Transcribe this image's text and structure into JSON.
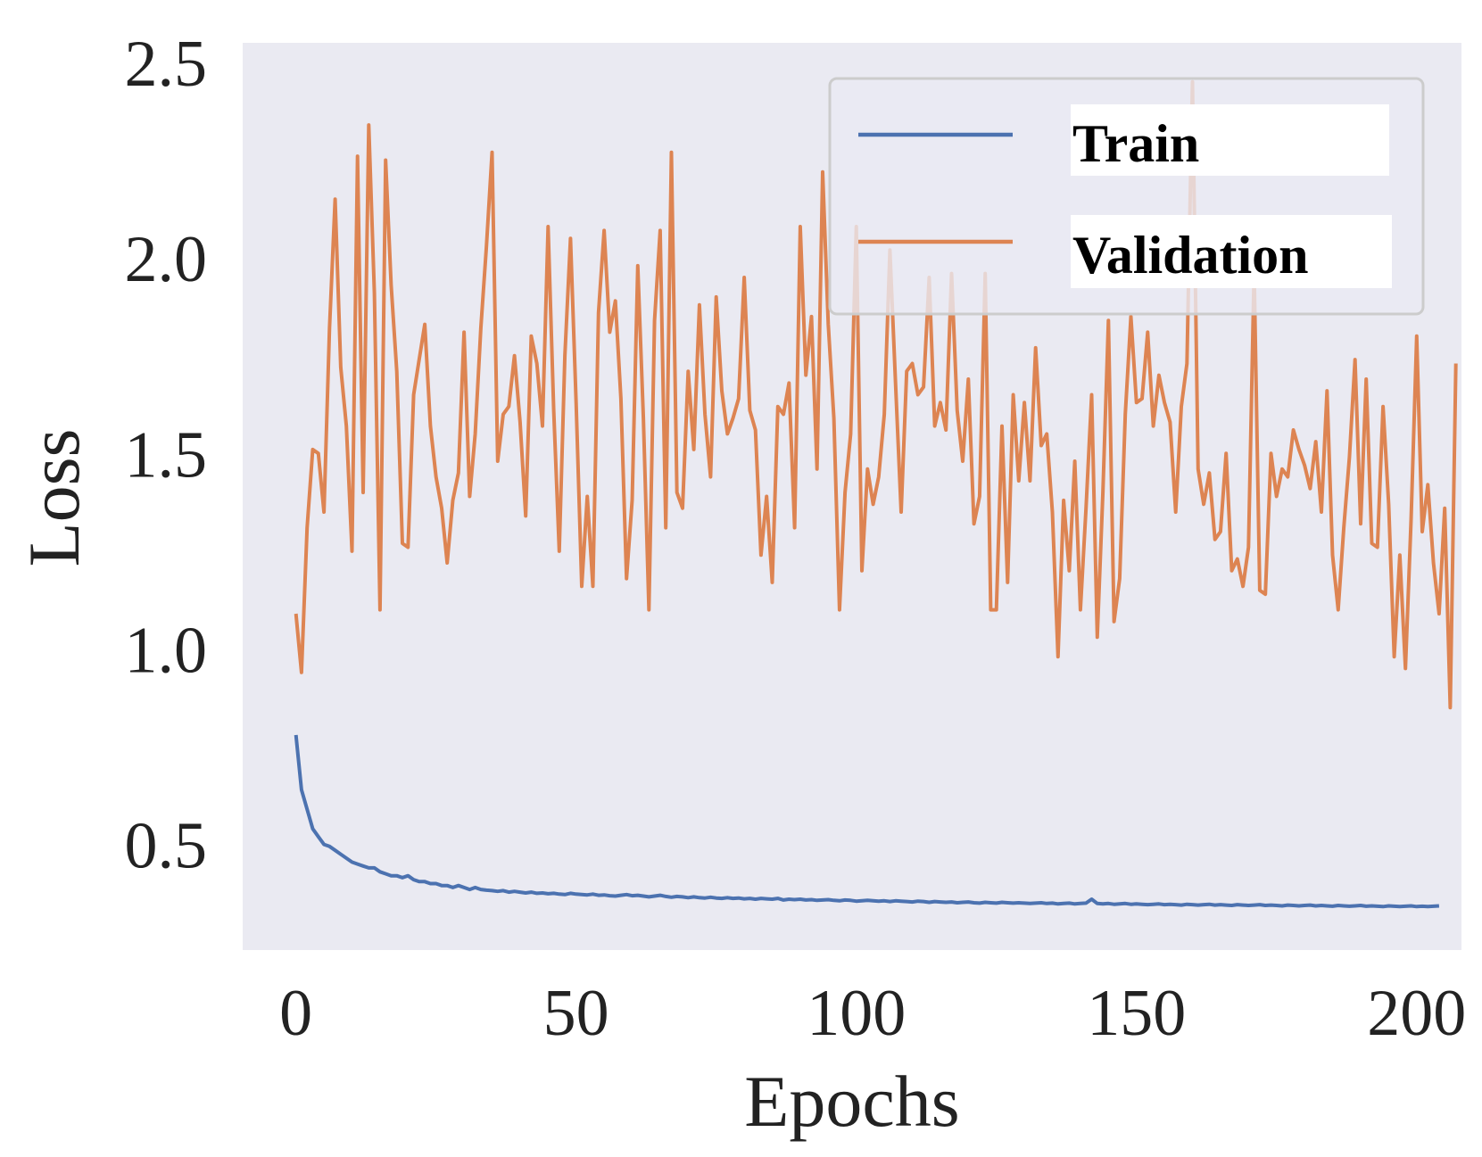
{
  "chart_data": {
    "type": "line",
    "title": "",
    "xlabel": "Epochs",
    "ylabel": "Loss",
    "xlim": [
      -9.5,
      208
    ],
    "ylim": [
      0.23,
      2.55
    ],
    "xticks": [
      0,
      50,
      100,
      150,
      200
    ],
    "xtick_labels": [
      "0",
      "50",
      "100",
      "150",
      "200"
    ],
    "yticks": [
      0.5,
      1.0,
      1.5,
      2.0,
      2.5
    ],
    "ytick_labels": [
      "0.5",
      "1.0",
      "1.5",
      "2.0",
      "2.5"
    ],
    "grid": false,
    "background": "#EAEAF2",
    "legend_position": "top-right",
    "series": [
      {
        "name": "Train",
        "color": "#4C72B0",
        "x_start": 0,
        "values": [
          0.78,
          0.64,
          0.59,
          0.54,
          0.52,
          0.5,
          0.495,
          0.485,
          0.475,
          0.465,
          0.455,
          0.45,
          0.445,
          0.44,
          0.44,
          0.43,
          0.425,
          0.42,
          0.42,
          0.415,
          0.42,
          0.41,
          0.405,
          0.405,
          0.4,
          0.4,
          0.395,
          0.395,
          0.39,
          0.395,
          0.39,
          0.385,
          0.39,
          0.385,
          0.383,
          0.382,
          0.38,
          0.382,
          0.378,
          0.38,
          0.378,
          0.376,
          0.378,
          0.375,
          0.376,
          0.374,
          0.375,
          0.373,
          0.372,
          0.375,
          0.373,
          0.372,
          0.371,
          0.373,
          0.37,
          0.371,
          0.369,
          0.368,
          0.37,
          0.372,
          0.369,
          0.37,
          0.368,
          0.366,
          0.368,
          0.37,
          0.367,
          0.365,
          0.367,
          0.366,
          0.364,
          0.366,
          0.364,
          0.363,
          0.365,
          0.363,
          0.362,
          0.364,
          0.362,
          0.363,
          0.361,
          0.362,
          0.36,
          0.362,
          0.361,
          0.36,
          0.362,
          0.358,
          0.36,
          0.359,
          0.36,
          0.358,
          0.359,
          0.357,
          0.358,
          0.359,
          0.357,
          0.356,
          0.358,
          0.357,
          0.355,
          0.356,
          0.357,
          0.356,
          0.355,
          0.356,
          0.354,
          0.356,
          0.355,
          0.354,
          0.353,
          0.355,
          0.354,
          0.352,
          0.354,
          0.353,
          0.352,
          0.353,
          0.351,
          0.352,
          0.353,
          0.351,
          0.35,
          0.352,
          0.351,
          0.35,
          0.352,
          0.351,
          0.35,
          0.351,
          0.35,
          0.349,
          0.35,
          0.351,
          0.349,
          0.35,
          0.348,
          0.349,
          0.35,
          0.348,
          0.349,
          0.35,
          0.36,
          0.349,
          0.348,
          0.349,
          0.347,
          0.348,
          0.349,
          0.347,
          0.348,
          0.347,
          0.346,
          0.347,
          0.348,
          0.346,
          0.347,
          0.346,
          0.345,
          0.347,
          0.346,
          0.345,
          0.346,
          0.347,
          0.345,
          0.346,
          0.345,
          0.344,
          0.346,
          0.345,
          0.344,
          0.345,
          0.346,
          0.344,
          0.345,
          0.344,
          0.343,
          0.345,
          0.344,
          0.343,
          0.344,
          0.345,
          0.343,
          0.344,
          0.343,
          0.342,
          0.344,
          0.343,
          0.342,
          0.343,
          0.344,
          0.342,
          0.343,
          0.342,
          0.341,
          0.343,
          0.342,
          0.341,
          0.342,
          0.343,
          0.341,
          0.342,
          0.341,
          0.342,
          0.343
        ]
      },
      {
        "name": "Validation",
        "color": "#DD8452",
        "x_start": 0,
        "values": [
          1.09,
          0.94,
          1.31,
          1.51,
          1.5,
          1.35,
          1.82,
          2.15,
          1.72,
          1.57,
          1.25,
          2.26,
          1.4,
          2.34,
          1.91,
          1.1,
          2.25,
          1.93,
          1.71,
          1.27,
          1.26,
          1.65,
          1.74,
          1.83,
          1.57,
          1.44,
          1.36,
          1.22,
          1.38,
          1.45,
          1.81,
          1.39,
          1.55,
          1.82,
          2.03,
          2.27,
          1.48,
          1.6,
          1.62,
          1.75,
          1.58,
          1.34,
          1.8,
          1.73,
          1.57,
          2.08,
          1.61,
          1.25,
          1.75,
          2.05,
          1.63,
          1.16,
          1.39,
          1.16,
          1.86,
          2.07,
          1.81,
          1.89,
          1.64,
          1.18,
          1.38,
          1.98,
          1.59,
          1.1,
          1.84,
          2.07,
          1.31,
          2.27,
          1.4,
          1.36,
          1.71,
          1.51,
          1.88,
          1.6,
          1.44,
          1.9,
          1.66,
          1.55,
          1.59,
          1.64,
          1.95,
          1.61,
          1.56,
          1.24,
          1.39,
          1.17,
          1.62,
          1.6,
          1.68,
          1.31,
          2.08,
          1.7,
          1.85,
          1.46,
          2.22,
          1.83,
          1.59,
          1.1,
          1.4,
          1.55,
          2.08,
          1.2,
          1.46,
          1.37,
          1.44,
          1.6,
          2.02,
          1.68,
          1.35,
          1.71,
          1.73,
          1.65,
          1.67,
          1.95,
          1.57,
          1.63,
          1.56,
          1.96,
          1.61,
          1.48,
          1.69,
          1.32,
          1.39,
          1.96,
          1.1,
          1.1,
          1.57,
          1.17,
          1.65,
          1.43,
          1.63,
          1.43,
          1.77,
          1.52,
          1.55,
          1.35,
          0.98,
          1.38,
          1.2,
          1.48,
          1.1,
          1.36,
          1.65,
          1.03,
          1.4,
          1.84,
          1.07,
          1.18,
          1.6,
          1.85,
          1.63,
          1.64,
          1.81,
          1.57,
          1.7,
          1.63,
          1.58,
          1.35,
          1.62,
          1.73,
          2.45,
          1.46,
          1.37,
          1.45,
          1.28,
          1.3,
          1.5,
          1.2,
          1.23,
          1.16,
          1.26,
          1.97,
          1.15,
          1.14,
          1.5,
          1.39,
          1.46,
          1.44,
          1.56,
          1.51,
          1.47,
          1.41,
          1.53,
          1.35,
          1.66,
          1.24,
          1.1,
          1.31,
          1.49,
          1.74,
          1.32,
          1.69,
          1.27,
          1.26,
          1.62,
          1.37,
          0.98,
          1.24,
          0.95,
          1.33,
          1.8,
          1.3,
          1.42,
          1.22,
          1.09,
          1.36,
          0.85,
          1.73
        ]
      }
    ]
  }
}
